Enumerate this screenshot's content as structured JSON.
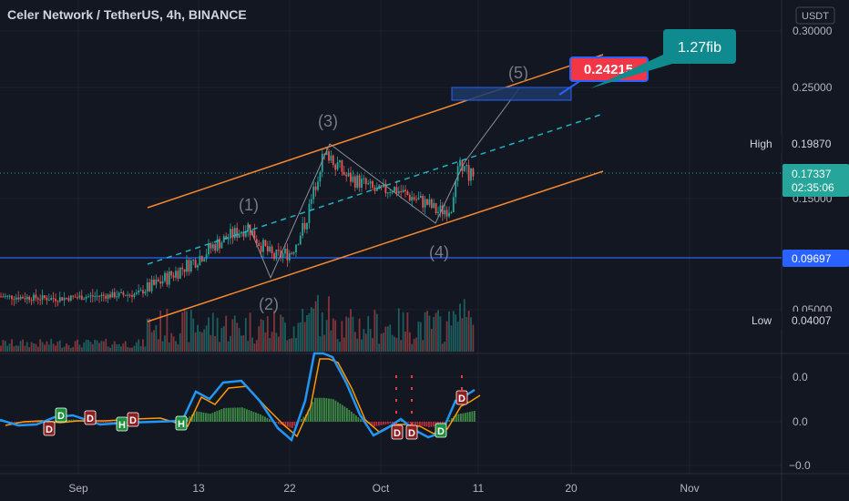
{
  "header": {
    "title": "Celer Network / TetherUS, 4h, BINANCE",
    "currency": "USDT"
  },
  "colors": {
    "background": "#131722",
    "up": "#26a69a",
    "down": "#ef5350",
    "channel": "#f7882f",
    "midline": "#1fb3c4",
    "level": "#2962ff",
    "osc_fast": "#2196f3",
    "osc_slow": "#ff9800",
    "hist_up": "#4caf50",
    "hist_down": "#f23645"
  },
  "chart_data": {
    "type": "candlestick",
    "x_tick_labels": [
      "Sep",
      "13",
      "22",
      "Oct",
      "11",
      "20",
      "Nov"
    ],
    "price_axis": {
      "ticks": [
        "0.30000",
        "0.25000",
        "0.15000",
        "0.05000"
      ],
      "ylim": [
        0.02,
        0.31
      ]
    },
    "price_tags": {
      "high_label": "High",
      "high_value": "0.19870",
      "last_value": "0.17337",
      "countdown": "02:35:06",
      "level_value": "0.09697",
      "low_label": "Low",
      "low_value": "0.04007"
    },
    "horizontal_level": 0.09697,
    "target_label": "0.24215",
    "fib_callout": "1.27fib",
    "wave_labels": [
      "(1)",
      "(2)",
      "(3)",
      "(4)",
      "(5)"
    ],
    "oscillator_axis": {
      "ticks": [
        "0.0",
        "0.0",
        "−0.0"
      ]
    },
    "signal_badges": [
      {
        "text": "D",
        "kind": "down"
      },
      {
        "text": "D",
        "kind": "up"
      },
      {
        "text": "D",
        "kind": "down"
      },
      {
        "text": "H",
        "kind": "up"
      },
      {
        "text": "D",
        "kind": "down"
      },
      {
        "text": "H",
        "kind": "up"
      },
      {
        "text": "D",
        "kind": "down"
      },
      {
        "text": "D",
        "kind": "down"
      },
      {
        "text": "D",
        "kind": "up"
      },
      {
        "text": "D",
        "kind": "down"
      }
    ]
  }
}
